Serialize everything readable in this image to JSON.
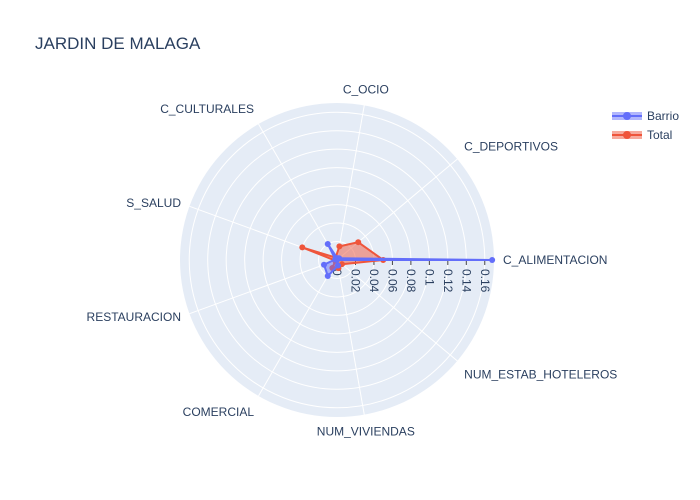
{
  "chart_data": {
    "type": "radar",
    "title": "JARDIN DE MALAGA",
    "axes": [
      "C_ALIMENTACION",
      "C_DEPORTIVOS",
      "C_OCIO",
      "C_CULTURALES",
      "S_SALUD",
      "RESTAURACION",
      "COMERCIAL",
      "NUM_VIVIENDAS",
      "NUM_ESTAB_HOTELEROS"
    ],
    "radial_ticks": [
      "0",
      "0.02",
      "0.04",
      "0.06",
      "0.08",
      "0.1",
      "0.12",
      "0.14",
      "0.16"
    ],
    "radial_range": [
      0,
      0.17
    ],
    "grid": true,
    "legend_position": "top-right",
    "series": [
      {
        "name": "Barrio",
        "color": "#636efa",
        "values": [
          0.168,
          0.003,
          0.002,
          0.02,
          0.002,
          0.015,
          0.02,
          0.006,
          0.0
        ]
      },
      {
        "name": "Total",
        "color": "#ef553b",
        "values": [
          0.05,
          0.03,
          0.015,
          0.003,
          0.04,
          0.002,
          0.01,
          0.009,
          0.007
        ]
      }
    ]
  }
}
